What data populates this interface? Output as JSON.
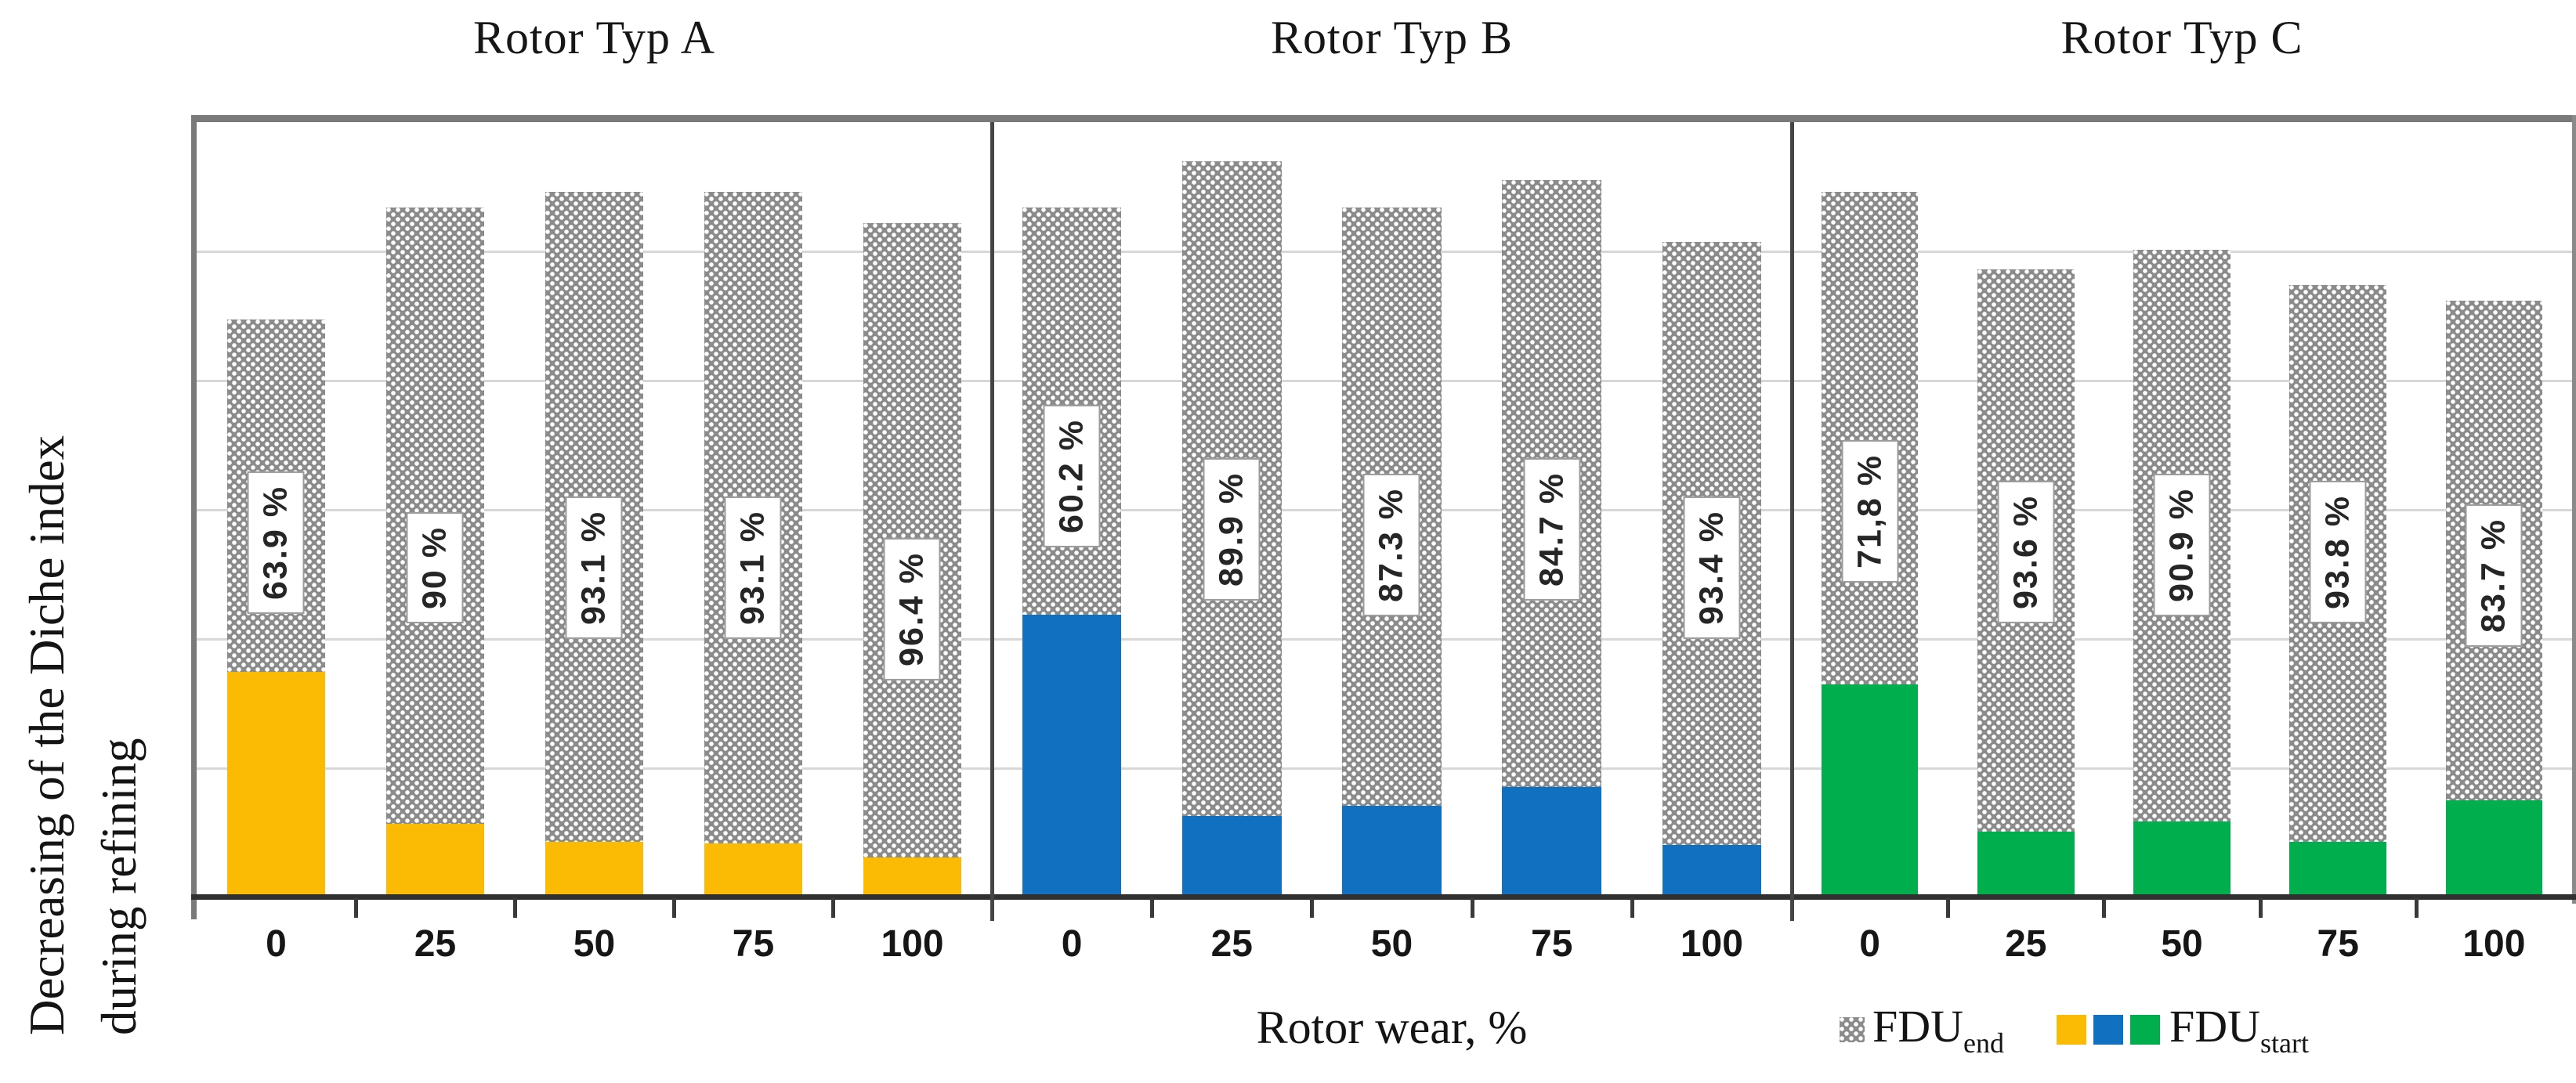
{
  "axis": {
    "x_label": "Rotor wear, %",
    "y_label_line1": "Decreasing of the Diche index",
    "y_label_line2": "during refining"
  },
  "categories": [
    "0",
    "25",
    "50",
    "75",
    "100"
  ],
  "legend": {
    "end_label": "FDU",
    "end_subscript": "end",
    "start_label": "FDU",
    "start_subscript": "start",
    "end_marker_color": "#8b8b8b",
    "start_marker_colors": [
      "#FBBB05",
      "#1170C0",
      "#00AE4D"
    ]
  },
  "chart_data": {
    "type": "bar",
    "stacked": true,
    "grid": "horizontal, 5 light gridlines (6 equal divisions), no y tick labels",
    "xlabel": "Rotor wear, %",
    "ylabel": "Decreasing of the Diche index during refining",
    "categories": [
      0,
      25,
      50,
      75,
      100
    ],
    "ylim_relative": [
      0,
      1
    ],
    "legend_position": "bottom-right",
    "series_names": [
      "FDU_end",
      "FDU_start"
    ],
    "panels": [
      {
        "title": "Rotor Typ A",
        "color": "#FBBB05",
        "decrease_labels": [
          "63.9 %",
          "90 %",
          "93.1 %",
          "93.1 %",
          "96.4 %"
        ],
        "bar_total_rel": [
          0.745,
          0.89,
          0.91,
          0.91,
          0.87
        ],
        "start_seg_rel": [
          0.291,
          0.095,
          0.072,
          0.07,
          0.052
        ],
        "label_center_rel": [
          0.542,
          0.575,
          0.575,
          0.575,
          0.628
        ]
      },
      {
        "title": "Rotor Typ B",
        "color": "#1170C0",
        "decrease_labels": [
          "60.2 %",
          "89.9 %",
          "87.3 %",
          "84.7 %",
          "93.4 %"
        ],
        "bar_total_rel": [
          0.89,
          0.95,
          0.89,
          0.925,
          0.845
        ],
        "start_seg_rel": [
          0.365,
          0.105,
          0.118,
          0.142,
          0.068
        ],
        "label_center_rel": [
          0.457,
          0.525,
          0.545,
          0.525,
          0.575
        ]
      },
      {
        "title": "Rotor Typ C",
        "color": "#00AE4D",
        "decrease_labels": [
          "71,8 %",
          "93.6 %",
          "90.9 %",
          "93.8 %",
          "83.7 %"
        ],
        "bar_total_rel": [
          0.91,
          0.81,
          0.835,
          0.79,
          0.77
        ],
        "start_seg_rel": [
          0.275,
          0.085,
          0.098,
          0.072,
          0.125
        ],
        "label_center_rel": [
          0.502,
          0.555,
          0.545,
          0.555,
          0.585
        ]
      }
    ]
  }
}
